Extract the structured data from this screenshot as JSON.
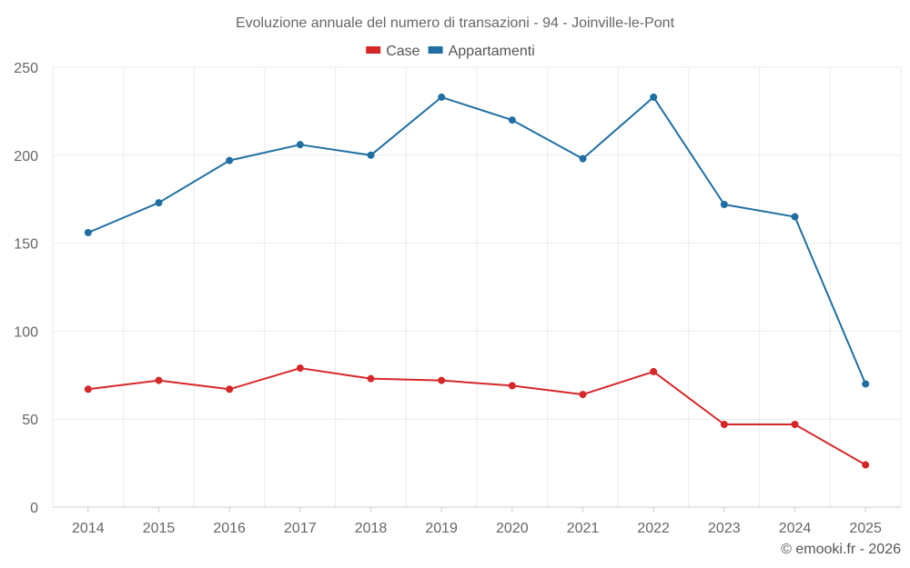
{
  "chart_data": {
    "type": "line",
    "title": "Evoluzione annuale del numero di transazioni - 94 - Joinville-le-Pont",
    "categories": [
      "2014",
      "2015",
      "2016",
      "2017",
      "2018",
      "2019",
      "2020",
      "2021",
      "2022",
      "2023",
      "2024",
      "2025"
    ],
    "series": [
      {
        "name": "Case",
        "color": "#d62728",
        "values": [
          67,
          72,
          67,
          79,
          73,
          72,
          69,
          64,
          77,
          47,
          47,
          24
        ]
      },
      {
        "name": "Appartamenti",
        "color": "#1f6fa3",
        "values": [
          156,
          173,
          197,
          206,
          200,
          233,
          220,
          198,
          233,
          172,
          165,
          70
        ]
      }
    ],
    "ylim": [
      0,
      250
    ],
    "yticks": [
      0,
      50,
      100,
      150,
      200,
      250
    ],
    "xlabel": "",
    "ylabel": "",
    "grid": true,
    "legend": "top-center"
  },
  "footer": {
    "copyright": "© emooki.fr - 2026"
  }
}
